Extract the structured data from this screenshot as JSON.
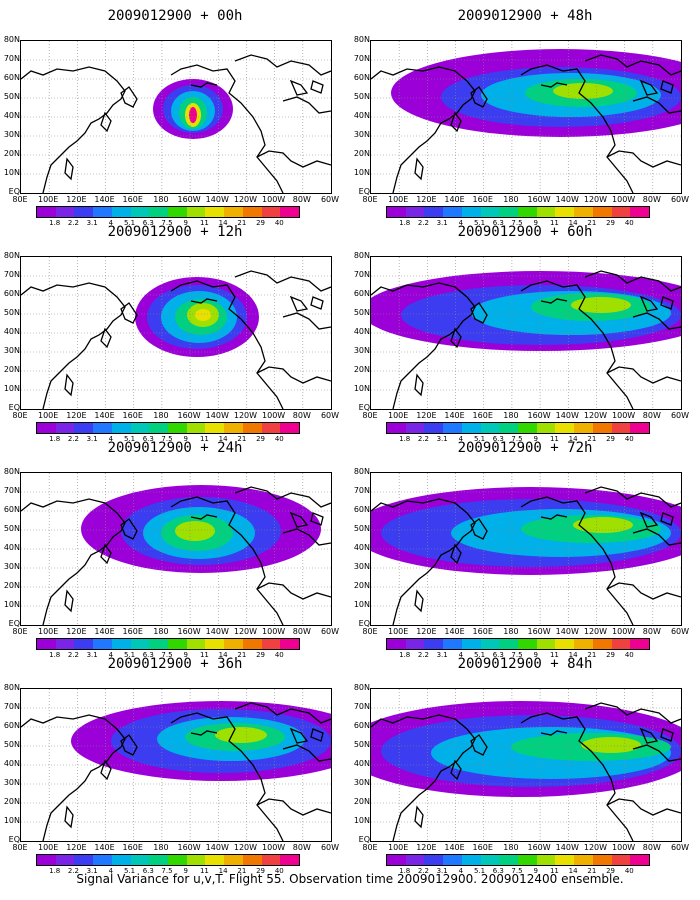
{
  "caption": "Signal Variance for u,v,T. Flight 55. Observation time 2009012900. 2009012400 ensemble.",
  "lat_labels": [
    "80N",
    "70N",
    "60N",
    "50N",
    "40N",
    "30N",
    "20N",
    "10N",
    "EQ"
  ],
  "lon_labels": [
    "80E",
    "100E",
    "120E",
    "140E",
    "160E",
    "180",
    "160W",
    "140W",
    "120W",
    "100W",
    "80W",
    "60W"
  ],
  "colorbar": {
    "labels": [
      "1.8",
      "2.2",
      "3.1",
      "4",
      "5.1",
      "6.3",
      "7.5",
      "9",
      "11",
      "14",
      "21",
      "29",
      "40"
    ],
    "colors": [
      "#9b00d9",
      "#7a24e8",
      "#3c3cf0",
      "#1f78ff",
      "#00b0e8",
      "#00c8b8",
      "#00d080",
      "#30d800",
      "#a0e000",
      "#e8e000",
      "#f0b000",
      "#f07800",
      "#f04040",
      "#f00090"
    ]
  },
  "panels": [
    {
      "title": "2009012900 + 00h",
      "stage": 0
    },
    {
      "title": "2009012900 + 48h",
      "stage": 4
    },
    {
      "title": "2009012900 + 12h",
      "stage": 1
    },
    {
      "title": "2009012900 + 60h",
      "stage": 5
    },
    {
      "title": "2009012900 + 24h",
      "stage": 2
    },
    {
      "title": "2009012900 + 72h",
      "stage": 6
    },
    {
      "title": "2009012900 + 36h",
      "stage": 3
    },
    {
      "title": "2009012900 + 84h",
      "stage": 7
    }
  ]
}
